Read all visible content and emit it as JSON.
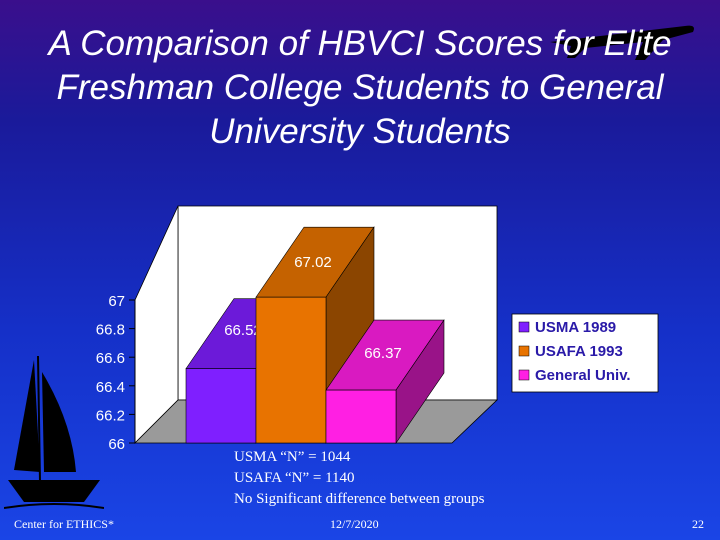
{
  "slide": {
    "title": "A Comparison of HBVCI Scores for Elite Freshman College Students to General University Students",
    "notes": [
      "USMA “N” = 1044",
      "USAFA “N” = 1140",
      "No Significant difference between groups"
    ],
    "footer": {
      "left": "Center for ETHICS*",
      "center": "12/7/2020",
      "right": "22"
    }
  },
  "chart_data": {
    "type": "bar",
    "title": "",
    "xlabel": "",
    "ylabel": "",
    "categories": [
      ""
    ],
    "series": [
      {
        "name": "USMA 1989",
        "values": [
          66.52
        ],
        "color": "#7f1fff",
        "label": "66.52"
      },
      {
        "name": "USAFA 1993",
        "values": [
          67.02
        ],
        "color": "#e87300",
        "label": "67.02"
      },
      {
        "name": "General Univ.",
        "values": [
          66.37
        ],
        "color": "#ff1fe3",
        "label": "66.37"
      }
    ],
    "ylim": [
      66,
      67
    ],
    "yticks": [
      "66",
      "66.2",
      "66.4",
      "66.6",
      "66.8",
      "67"
    ],
    "three_d": true,
    "grid": false,
    "legend": "right"
  }
}
